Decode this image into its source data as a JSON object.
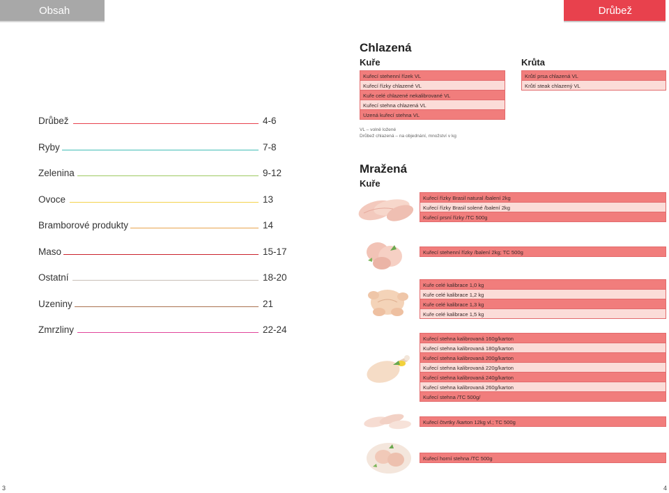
{
  "header": {
    "left_tab": "Obsah",
    "right_tab": "Drůbež"
  },
  "toc": [
    {
      "name": "Drůbež",
      "page": "4-6",
      "color": "#e8414d"
    },
    {
      "name": "Ryby",
      "page": "7-8",
      "color": "#3fbdb5"
    },
    {
      "name": "Zelenina",
      "page": "9-12",
      "color": "#9dc95f"
    },
    {
      "name": "Ovoce",
      "page": "13",
      "color": "#f4d24a"
    },
    {
      "name": "Bramborové produkty",
      "page": "14",
      "color": "#e8a34c"
    },
    {
      "name": "Maso",
      "page": "15-17",
      "color": "#c9202b"
    },
    {
      "name": "Ostatní",
      "page": "18-20",
      "color": "#c8bfb6"
    },
    {
      "name": "Uzeniny",
      "page": "21",
      "color": "#a9714f"
    },
    {
      "name": "Zmrzliny",
      "page": "22-24",
      "color": "#e0449a"
    }
  ],
  "chlazena": {
    "title": "Chlazená",
    "kure_title": "Kuře",
    "kure_items": [
      "Kuřecí stehenní řízek VL",
      "Kuřecí řízky chlazené VL",
      "Kuře celé chlazené nekalibrované VL",
      "Kuřecí stehna chlazená VL",
      "Uzená kuřecí stehna VL"
    ],
    "kruta_title": "Krůta",
    "kruta_items": [
      "Krůtí prsa chlazená VL",
      "Krůtí steak chlazený VL"
    ],
    "note_1": "VL – volně ložené",
    "note_2": "Drůbež chlazená – na objednání, množství v kg"
  },
  "mrazena": {
    "title": "Mražená",
    "kure_title": "Kuře",
    "groups": [
      [
        "Kuřecí řízky Brasil natural /balení 2kg",
        "Kuřecí řízky Brasil solené /balení 2kg",
        "Kuřecí prsní řízky /TC 500g"
      ],
      [
        "Kuřecí stehenní řízky /balení 2kg; TC 500g"
      ],
      [
        "Kuře celé kalibrace 1,0 kg",
        "Kuře celé kalibrace 1,2 kg",
        "Kuře celé kalibrace 1,3 kg",
        "Kuře celé kalibrace 1,5 kg"
      ],
      [
        "Kuřecí stehna kalibrovaná 160g/karton",
        "Kuřecí stehna kalibrovaná 180g/karton",
        "Kuřecí stehna kalibrovaná 200g/karton",
        "Kuřecí stehna kalibrovaná 220g/karton",
        "Kuřecí stehna kalibrovaná 240g/karton",
        "Kuřecí stehna kalibrovaná 260g/karton",
        "Kuřecí stehna /TC 500g/"
      ],
      [
        "Kuřecí čtvrtky /karton 12kg vl.; TC 500g"
      ],
      [
        "Kuřecí horní stehna /TC 500g"
      ]
    ]
  },
  "page_numbers": {
    "left": "3",
    "right": "4"
  },
  "colors": {
    "row_dark": "#f17d7c",
    "row_light": "#fbdcd8",
    "accent": "#e8414d"
  }
}
